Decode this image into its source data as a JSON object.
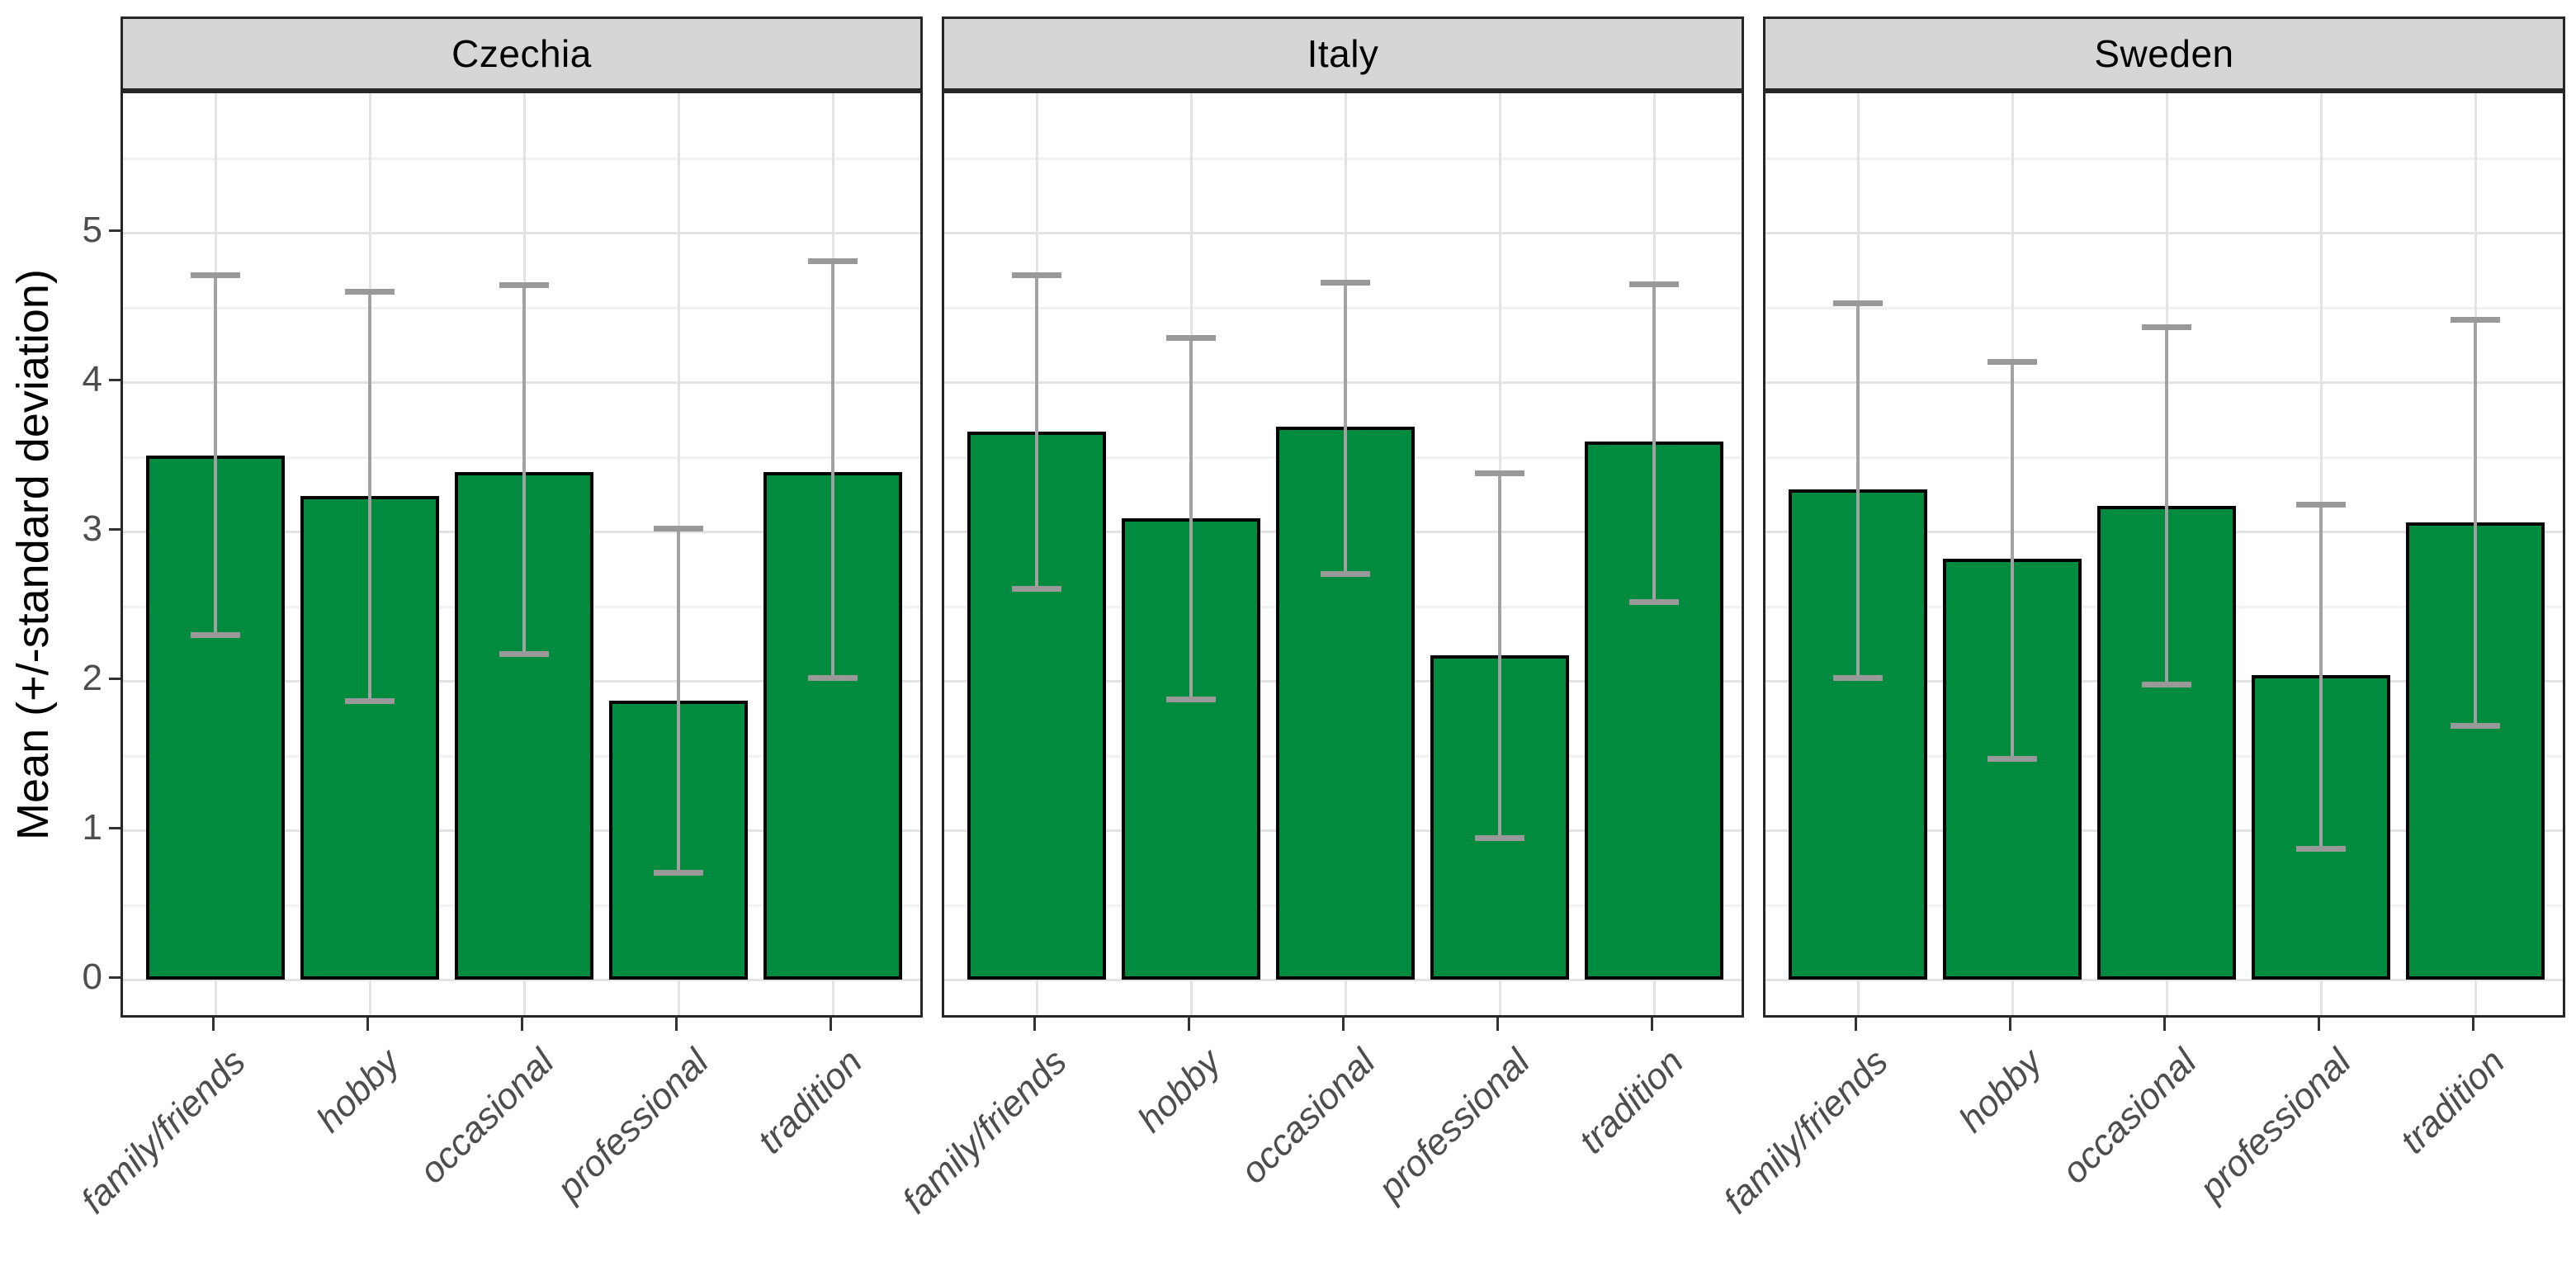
{
  "chart_data": {
    "type": "bar",
    "title": "",
    "ylabel": "Mean (+/-standard deviation)",
    "xlabel": "",
    "yticks": [
      0,
      1,
      2,
      3,
      4,
      5
    ],
    "ylim": [
      -0.26,
      5.93
    ],
    "grid": {
      "horizontal_major_at": [
        0,
        1,
        2,
        3,
        4,
        5
      ],
      "horizontal_minor_at": [
        0.5,
        1.5,
        2.5,
        3.5,
        4.5,
        5.5
      ],
      "vertical_major": "at each category center"
    },
    "legend_position": "none",
    "categories": [
      "family/friends",
      "hobby",
      "occasional",
      "professional",
      "tradition"
    ],
    "facets": [
      {
        "label": "Czechia",
        "means": [
          3.51,
          3.24,
          3.4,
          1.87,
          3.4
        ],
        "err_low": [
          2.31,
          1.87,
          2.18,
          0.72,
          2.02
        ],
        "err_high": [
          4.72,
          4.61,
          4.65,
          3.02,
          4.81
        ]
      },
      {
        "label": "Italy",
        "means": [
          3.67,
          3.09,
          3.7,
          2.17,
          3.6
        ],
        "err_low": [
          2.62,
          1.88,
          2.72,
          0.95,
          2.53
        ],
        "err_high": [
          4.72,
          4.3,
          4.67,
          3.39,
          4.66
        ]
      },
      {
        "label": "Sweden",
        "means": [
          3.28,
          2.82,
          3.17,
          2.04,
          3.06
        ],
        "err_low": [
          2.02,
          1.48,
          1.98,
          0.88,
          1.7
        ],
        "err_high": [
          4.53,
          4.14,
          4.37,
          3.18,
          4.42
        ]
      }
    ],
    "colors": {
      "bar_fill": "#008B3E",
      "bar_stroke": "#000000",
      "error_bar": "#9A9A9A",
      "grid_major": "#E3E3E3",
      "grid_minor": "#F1F1F1",
      "strip_background": "#D6D6D6",
      "panel_border": "#262626",
      "axis_text": "#4D4D4D",
      "title_text": "#000000"
    }
  }
}
